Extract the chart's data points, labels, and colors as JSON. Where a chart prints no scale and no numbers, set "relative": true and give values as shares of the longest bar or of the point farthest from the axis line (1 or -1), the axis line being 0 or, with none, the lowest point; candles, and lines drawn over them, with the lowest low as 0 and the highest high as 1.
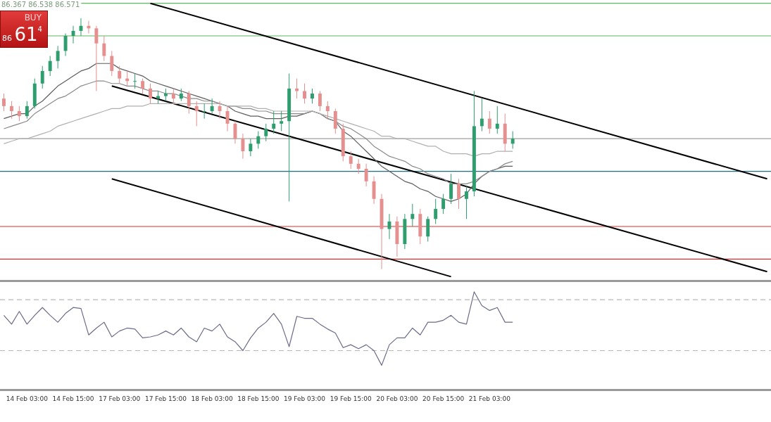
{
  "chart_data": [
    {
      "type": "candlestick",
      "relative": true,
      "grid": false,
      "legend": false,
      "tick_labels": false,
      "categories": [
        null,
        null,
        null,
        null,
        null,
        null,
        null,
        null,
        null,
        null,
        null,
        null,
        null,
        null,
        null,
        null,
        null,
        null,
        null,
        null,
        null,
        null,
        null,
        null,
        null,
        null,
        null,
        null,
        null,
        null,
        null,
        null,
        null,
        null,
        null,
        null,
        null,
        null,
        null,
        null,
        null,
        null,
        null,
        null,
        null,
        null,
        null,
        null,
        null,
        null,
        null,
        null,
        null,
        null,
        null,
        null,
        null,
        null,
        null,
        null,
        null,
        null,
        null,
        null,
        null,
        null,
        null,
        null,
        null,
        null,
        null,
        null,
        null,
        null,
        null,
        null,
        null,
        null,
        null,
        null,
        null,
        null,
        null,
        null,
        null,
        null,
        null,
        null,
        null,
        null,
        null,
        null,
        null,
        null,
        null,
        null,
        null,
        null,
        null,
        null
      ],
      "ohlc": [
        [
          0.68,
          0.7,
          0.63,
          0.65
        ],
        [
          0.65,
          0.67,
          0.6,
          0.63
        ],
        [
          0.63,
          0.65,
          0.59,
          0.61
        ],
        [
          0.61,
          0.67,
          0.6,
          0.65
        ],
        [
          0.65,
          0.76,
          0.64,
          0.74
        ],
        [
          0.74,
          0.81,
          0.72,
          0.79
        ],
        [
          0.79,
          0.85,
          0.77,
          0.83
        ],
        [
          0.83,
          0.89,
          0.8,
          0.87
        ],
        [
          0.87,
          0.94,
          0.85,
          0.93
        ],
        [
          0.93,
          0.97,
          0.9,
          0.95
        ],
        [
          0.95,
          1,
          0.93,
          0.97
        ],
        [
          0.97,
          0.99,
          0.94,
          0.96
        ],
        [
          0.96,
          0.97,
          0.71,
          0.9
        ],
        [
          0.9,
          0.93,
          0.83,
          0.85
        ],
        [
          0.85,
          0.87,
          0.77,
          0.79
        ],
        [
          0.79,
          0.81,
          0.74,
          0.76
        ],
        [
          0.76,
          0.79,
          0.73,
          0.75
        ],
        [
          0.75,
          0.78,
          0.72,
          0.75
        ],
        [
          0.75,
          0.76,
          0.7,
          0.72
        ],
        [
          0.72,
          0.74,
          0.66,
          0.68
        ],
        [
          0.68,
          0.71,
          0.66,
          0.69
        ],
        [
          0.69,
          0.72,
          0.67,
          0.7
        ],
        [
          0.7,
          0.72,
          0.66,
          0.68
        ],
        [
          0.68,
          0.72,
          0.67,
          0.7
        ],
        [
          0.7,
          0.71,
          0.62,
          0.65
        ],
        [
          0.65,
          0.67,
          0.57,
          0.63
        ],
        [
          0.63,
          0.66,
          0.6,
          0.63
        ],
        [
          0.63,
          0.68,
          0.62,
          0.65
        ],
        [
          0.65,
          0.67,
          0.6,
          0.63
        ],
        [
          0.63,
          0.65,
          0.55,
          0.58
        ],
        [
          0.58,
          0.59,
          0.5,
          0.52
        ],
        [
          0.52,
          0.54,
          0.44,
          0.47
        ],
        [
          0.47,
          0.52,
          0.45,
          0.5
        ],
        [
          0.5,
          0.55,
          0.48,
          0.53
        ],
        [
          0.53,
          0.58,
          0.51,
          0.56
        ],
        [
          0.56,
          0.63,
          0.54,
          0.58
        ],
        [
          0.58,
          0.63,
          0.55,
          0.59
        ],
        [
          0.59,
          0.78,
          0.27,
          0.72
        ],
        [
          0.72,
          0.76,
          0.68,
          0.71
        ],
        [
          0.71,
          0.74,
          0.66,
          0.68
        ],
        [
          0.68,
          0.72,
          0.66,
          0.7
        ],
        [
          0.7,
          0.71,
          0.63,
          0.65
        ],
        [
          0.65,
          0.67,
          0.6,
          0.63
        ],
        [
          0.63,
          0.64,
          0.54,
          0.56
        ],
        [
          0.56,
          0.58,
          0.43,
          0.45
        ],
        [
          0.45,
          0.47,
          0.4,
          0.42
        ],
        [
          0.42,
          0.44,
          0.38,
          0.4
        ],
        [
          0.4,
          0.42,
          0.33,
          0.35
        ],
        [
          0.35,
          0.37,
          0.26,
          0.28
        ],
        [
          0.28,
          0.3,
          0,
          0.16
        ],
        [
          0.16,
          0.22,
          0.12,
          0.19
        ],
        [
          0.19,
          0.21,
          0.05,
          0.1
        ],
        [
          0.1,
          0.22,
          0.08,
          0.2
        ],
        [
          0.2,
          0.26,
          0.17,
          0.22
        ],
        [
          0.22,
          0.24,
          0.1,
          0.13
        ],
        [
          0.13,
          0.21,
          0.11,
          0.2
        ],
        [
          0.2,
          0.28,
          0.18,
          0.24
        ],
        [
          0.24,
          0.3,
          0.22,
          0.28
        ],
        [
          0.28,
          0.38,
          0.26,
          0.34
        ],
        [
          0.34,
          0.36,
          0.24,
          0.28
        ],
        [
          0.28,
          0.33,
          0.2,
          0.31
        ],
        [
          0.31,
          0.71,
          0.29,
          0.57
        ],
        [
          0.57,
          0.68,
          0.55,
          0.6
        ],
        [
          0.6,
          0.63,
          0.54,
          0.56
        ],
        [
          0.56,
          0.65,
          0.54,
          0.58
        ],
        [
          0.58,
          0.62,
          0.47,
          0.5
        ],
        [
          0.5,
          0.55,
          0.48,
          0.52
        ],
        null,
        null,
        null,
        null,
        null,
        null,
        null,
        null,
        null,
        null,
        null,
        null,
        null,
        null,
        null,
        null,
        null,
        null,
        null,
        null,
        null,
        null,
        null,
        null,
        null,
        null,
        null,
        null,
        null,
        null,
        null,
        null,
        null
      ],
      "series": [
        {
          "type": "line",
          "color": "#b0b0b0",
          "values": [
            0.5,
            0.51,
            0.52,
            0.52,
            0.53,
            0.54,
            0.55,
            0.57,
            0.58,
            0.59,
            0.6,
            0.61,
            0.62,
            0.63,
            0.64,
            0.64,
            0.65,
            0.65,
            0.65,
            0.66,
            0.66,
            0.66,
            0.66,
            0.66,
            0.66,
            0.66,
            0.66,
            0.66,
            0.66,
            0.65,
            0.65,
            0.65,
            0.65,
            0.64,
            0.64,
            0.63,
            0.63,
            0.63,
            0.63,
            0.63,
            0.63,
            0.62,
            0.61,
            0.6,
            0.59,
            0.58,
            0.57,
            0.56,
            0.55,
            0.53,
            0.53,
            0.52,
            0.52,
            0.51,
            0.5,
            0.49,
            0.49,
            0.47,
            0.46,
            0.46,
            0.46,
            0.45,
            0.46,
            0.46,
            0.47,
            0.47,
            0.47,
            null,
            null,
            null,
            null,
            null,
            null,
            null,
            null,
            null,
            null,
            null,
            null,
            null,
            null,
            null,
            null,
            null,
            null,
            null,
            null,
            null,
            null,
            null,
            null,
            null,
            null,
            null,
            null,
            null,
            null,
            null,
            null,
            null
          ]
        },
        {
          "type": "line",
          "color": "#8a8a8a",
          "values": [
            0.56,
            0.57,
            0.58,
            0.59,
            0.62,
            0.64,
            0.66,
            0.68,
            0.69,
            0.71,
            0.73,
            0.74,
            0.75,
            0.75,
            0.74,
            0.74,
            0.73,
            0.73,
            0.72,
            0.71,
            0.71,
            0.7,
            0.7,
            0.69,
            0.68,
            0.68,
            0.67,
            0.67,
            0.66,
            0.65,
            0.65,
            0.64,
            0.64,
            0.63,
            0.63,
            0.62,
            0.62,
            0.62,
            0.62,
            0.62,
            0.63,
            0.62,
            0.6,
            0.59,
            0.57,
            0.56,
            0.54,
            0.52,
            0.49,
            0.47,
            0.45,
            0.44,
            0.43,
            0.41,
            0.4,
            0.38,
            0.37,
            0.36,
            0.34,
            0.34,
            0.34,
            0.35,
            0.37,
            0.39,
            0.4,
            0.42,
            0.43,
            null,
            null,
            null,
            null,
            null,
            null,
            null,
            null,
            null,
            null,
            null,
            null,
            null,
            null,
            null,
            null,
            null,
            null,
            null,
            null,
            null,
            null,
            null,
            null,
            null,
            null,
            null,
            null,
            null,
            null,
            null,
            null,
            null
          ]
        },
        {
          "type": "line",
          "color": "#5e5e5e",
          "values": [
            0.6,
            0.61,
            0.62,
            0.62,
            0.65,
            0.67,
            0.7,
            0.73,
            0.75,
            0.77,
            0.79,
            0.8,
            0.82,
            0.82,
            0.82,
            0.8,
            0.79,
            0.78,
            0.77,
            0.75,
            0.74,
            0.73,
            0.72,
            0.71,
            0.7,
            0.69,
            0.68,
            0.67,
            0.66,
            0.65,
            0.63,
            0.62,
            0.61,
            0.61,
            0.6,
            0.6,
            0.6,
            0.61,
            0.61,
            0.62,
            0.63,
            0.62,
            0.6,
            0.59,
            0.55,
            0.53,
            0.5,
            0.47,
            0.44,
            0.41,
            0.39,
            0.37,
            0.35,
            0.34,
            0.32,
            0.31,
            0.29,
            0.28,
            0.27,
            0.28,
            0.3,
            0.34,
            0.37,
            0.39,
            0.4,
            0.41,
            0.41,
            null,
            null,
            null,
            null,
            null,
            null,
            null,
            null,
            null,
            null,
            null,
            null,
            null,
            null,
            null,
            null,
            null,
            null,
            null,
            null,
            null,
            null,
            null,
            null,
            null,
            null,
            null,
            null,
            null,
            null,
            null,
            null,
            null
          ]
        },
        {
          "type": "line",
          "color": "#000000",
          "values": [
            null,
            null,
            null,
            null,
            null,
            null,
            null,
            null,
            null,
            null,
            null,
            null,
            null,
            null,
            null,
            null,
            null,
            null,
            null,
            1.06,
            null,
            null,
            null,
            null,
            null,
            null,
            null,
            null,
            null,
            null,
            null,
            null,
            null,
            null,
            null,
            null,
            null,
            null,
            null,
            null,
            null,
            null,
            null,
            null,
            null,
            null,
            null,
            null,
            null,
            null,
            null,
            null,
            null,
            null,
            null,
            null,
            null,
            null,
            null,
            null,
            null,
            null,
            null,
            null,
            null,
            null,
            null,
            null,
            null,
            null,
            null,
            null,
            null,
            null,
            null,
            null,
            null,
            null,
            null,
            null,
            null,
            null,
            null,
            null,
            null,
            null,
            null,
            null,
            null,
            null,
            null,
            null,
            null,
            null,
            null,
            null,
            null,
            null,
            null,
            0.36
          ]
        },
        {
          "type": "line",
          "color": "#000000",
          "values": [
            null,
            null,
            null,
            null,
            null,
            null,
            null,
            null,
            null,
            null,
            null,
            null,
            null,
            null,
            0.73,
            null,
            null,
            null,
            null,
            null,
            null,
            null,
            null,
            null,
            null,
            null,
            null,
            null,
            null,
            null,
            null,
            null,
            null,
            null,
            null,
            null,
            null,
            null,
            null,
            null,
            null,
            null,
            null,
            null,
            null,
            null,
            null,
            null,
            null,
            null,
            null,
            null,
            null,
            null,
            null,
            null,
            null,
            null,
            null,
            null,
            null,
            null,
            null,
            null,
            null,
            null,
            null,
            null,
            null,
            null,
            null,
            null,
            null,
            null,
            null,
            null,
            null,
            null,
            null,
            null,
            null,
            null,
            null,
            null,
            null,
            null,
            null,
            null,
            null,
            null,
            null,
            null,
            null,
            null,
            null,
            null,
            null,
            null,
            null,
            -0.01
          ]
        },
        {
          "type": "line",
          "color": "#000000",
          "values": [
            null,
            null,
            null,
            null,
            null,
            null,
            null,
            null,
            null,
            null,
            null,
            null,
            null,
            null,
            0.36,
            null,
            null,
            null,
            null,
            null,
            null,
            null,
            null,
            null,
            null,
            null,
            null,
            null,
            null,
            null,
            null,
            null,
            null,
            null,
            null,
            null,
            null,
            null,
            null,
            null,
            null,
            null,
            null,
            null,
            null,
            null,
            null,
            null,
            null,
            null,
            null,
            null,
            null,
            null,
            null,
            null,
            null,
            null,
            -0.03,
            null,
            null,
            null,
            null,
            null,
            null,
            null,
            null,
            null,
            null,
            null,
            null,
            null,
            null,
            null,
            null,
            null,
            null,
            null,
            null,
            null,
            null,
            null,
            null,
            null,
            null,
            null,
            null,
            null,
            null,
            null,
            null,
            null,
            null,
            null,
            null,
            null,
            null,
            null,
            null,
            null
          ]
        }
      ],
      "ref_lines": [
        {
          "axis": "y",
          "value": 1.06,
          "color": "#5cb85c"
        },
        {
          "axis": "y",
          "value": 0.93,
          "color": "#5cb85c"
        },
        {
          "axis": "y",
          "value": 0.52,
          "color": "#a0a0a0"
        },
        {
          "axis": "y",
          "value": 0.39,
          "color": "#1f6f8b"
        },
        {
          "axis": "y",
          "value": 0.17,
          "color": "#e0302a"
        },
        {
          "axis": "y",
          "value": 0.04,
          "color": "#e0302a"
        }
      ],
      "annotations": [
        "86.367 86.538 86.571",
        "BUY",
        "86",
        "61",
        "4"
      ]
    },
    {
      "type": "line",
      "relative": true,
      "grid": false,
      "legend": false,
      "categories": [
        null,
        null,
        null,
        "14 Feb 03:00",
        null,
        null,
        null,
        null,
        null,
        "14 Feb 15:00",
        null,
        null,
        null,
        null,
        null,
        "17 Feb 03:00",
        null,
        null,
        null,
        null,
        null,
        "17 Feb 15:00",
        null,
        null,
        null,
        null,
        null,
        "18 Feb 03:00",
        null,
        null,
        null,
        null,
        null,
        "18 Feb 15:00",
        null,
        null,
        null,
        null,
        null,
        "19 Feb 03:00",
        null,
        null,
        null,
        null,
        null,
        "19 Feb 15:00",
        null,
        null,
        null,
        null,
        null,
        "20 Feb 03:00",
        null,
        null,
        null,
        null,
        null,
        "20 Feb 15:00",
        null,
        null,
        null,
        null,
        null,
        "21 Feb 03:00",
        null,
        null,
        null,
        null,
        null,
        null,
        null,
        null,
        null,
        null,
        null,
        null,
        null,
        null,
        null,
        null,
        null,
        null,
        null,
        null,
        null,
        null,
        null,
        null,
        null,
        null,
        null,
        null,
        null,
        null,
        null,
        null,
        null,
        null,
        null,
        null
      ],
      "series": [
        {
          "color": "#6b6b8a",
          "values": [
            0.76,
            0.67,
            0.8,
            0.67,
            0.76,
            0.84,
            0.76,
            0.69,
            0.78,
            0.84,
            0.83,
            0.56,
            0.63,
            0.69,
            0.54,
            0.6,
            0.63,
            0.62,
            0.53,
            0.54,
            0.56,
            0.6,
            0.56,
            0.63,
            0.54,
            0.49,
            0.63,
            0.6,
            0.67,
            0.54,
            0.49,
            0.4,
            0.53,
            0.63,
            0.69,
            0.78,
            0.67,
            0.44,
            0.75,
            0.73,
            0.73,
            0.67,
            0.62,
            0.58,
            0.43,
            0.46,
            0.42,
            0.46,
            0.4,
            0.25,
            0.46,
            0.53,
            0.53,
            0.63,
            0.56,
            0.69,
            0.69,
            0.71,
            0.76,
            0.69,
            0.67,
            1,
            0.86,
            0.81,
            0.84,
            0.69,
            0.69,
            null,
            null,
            null,
            null,
            null,
            null,
            null,
            null,
            null,
            null,
            null,
            null,
            null,
            null,
            null,
            null,
            null,
            null,
            null,
            null,
            null,
            null,
            null,
            null,
            null,
            null,
            null,
            null,
            null,
            null,
            null,
            null,
            null
          ]
        }
      ],
      "ref_lines": [
        {
          "axis": "y",
          "value": 0.92,
          "color": "#b8b8b8",
          "line_style": "dashed"
        },
        {
          "axis": "y",
          "value": 0.4,
          "color": "#b8b8b8",
          "line_style": "dashed"
        }
      ]
    }
  ]
}
